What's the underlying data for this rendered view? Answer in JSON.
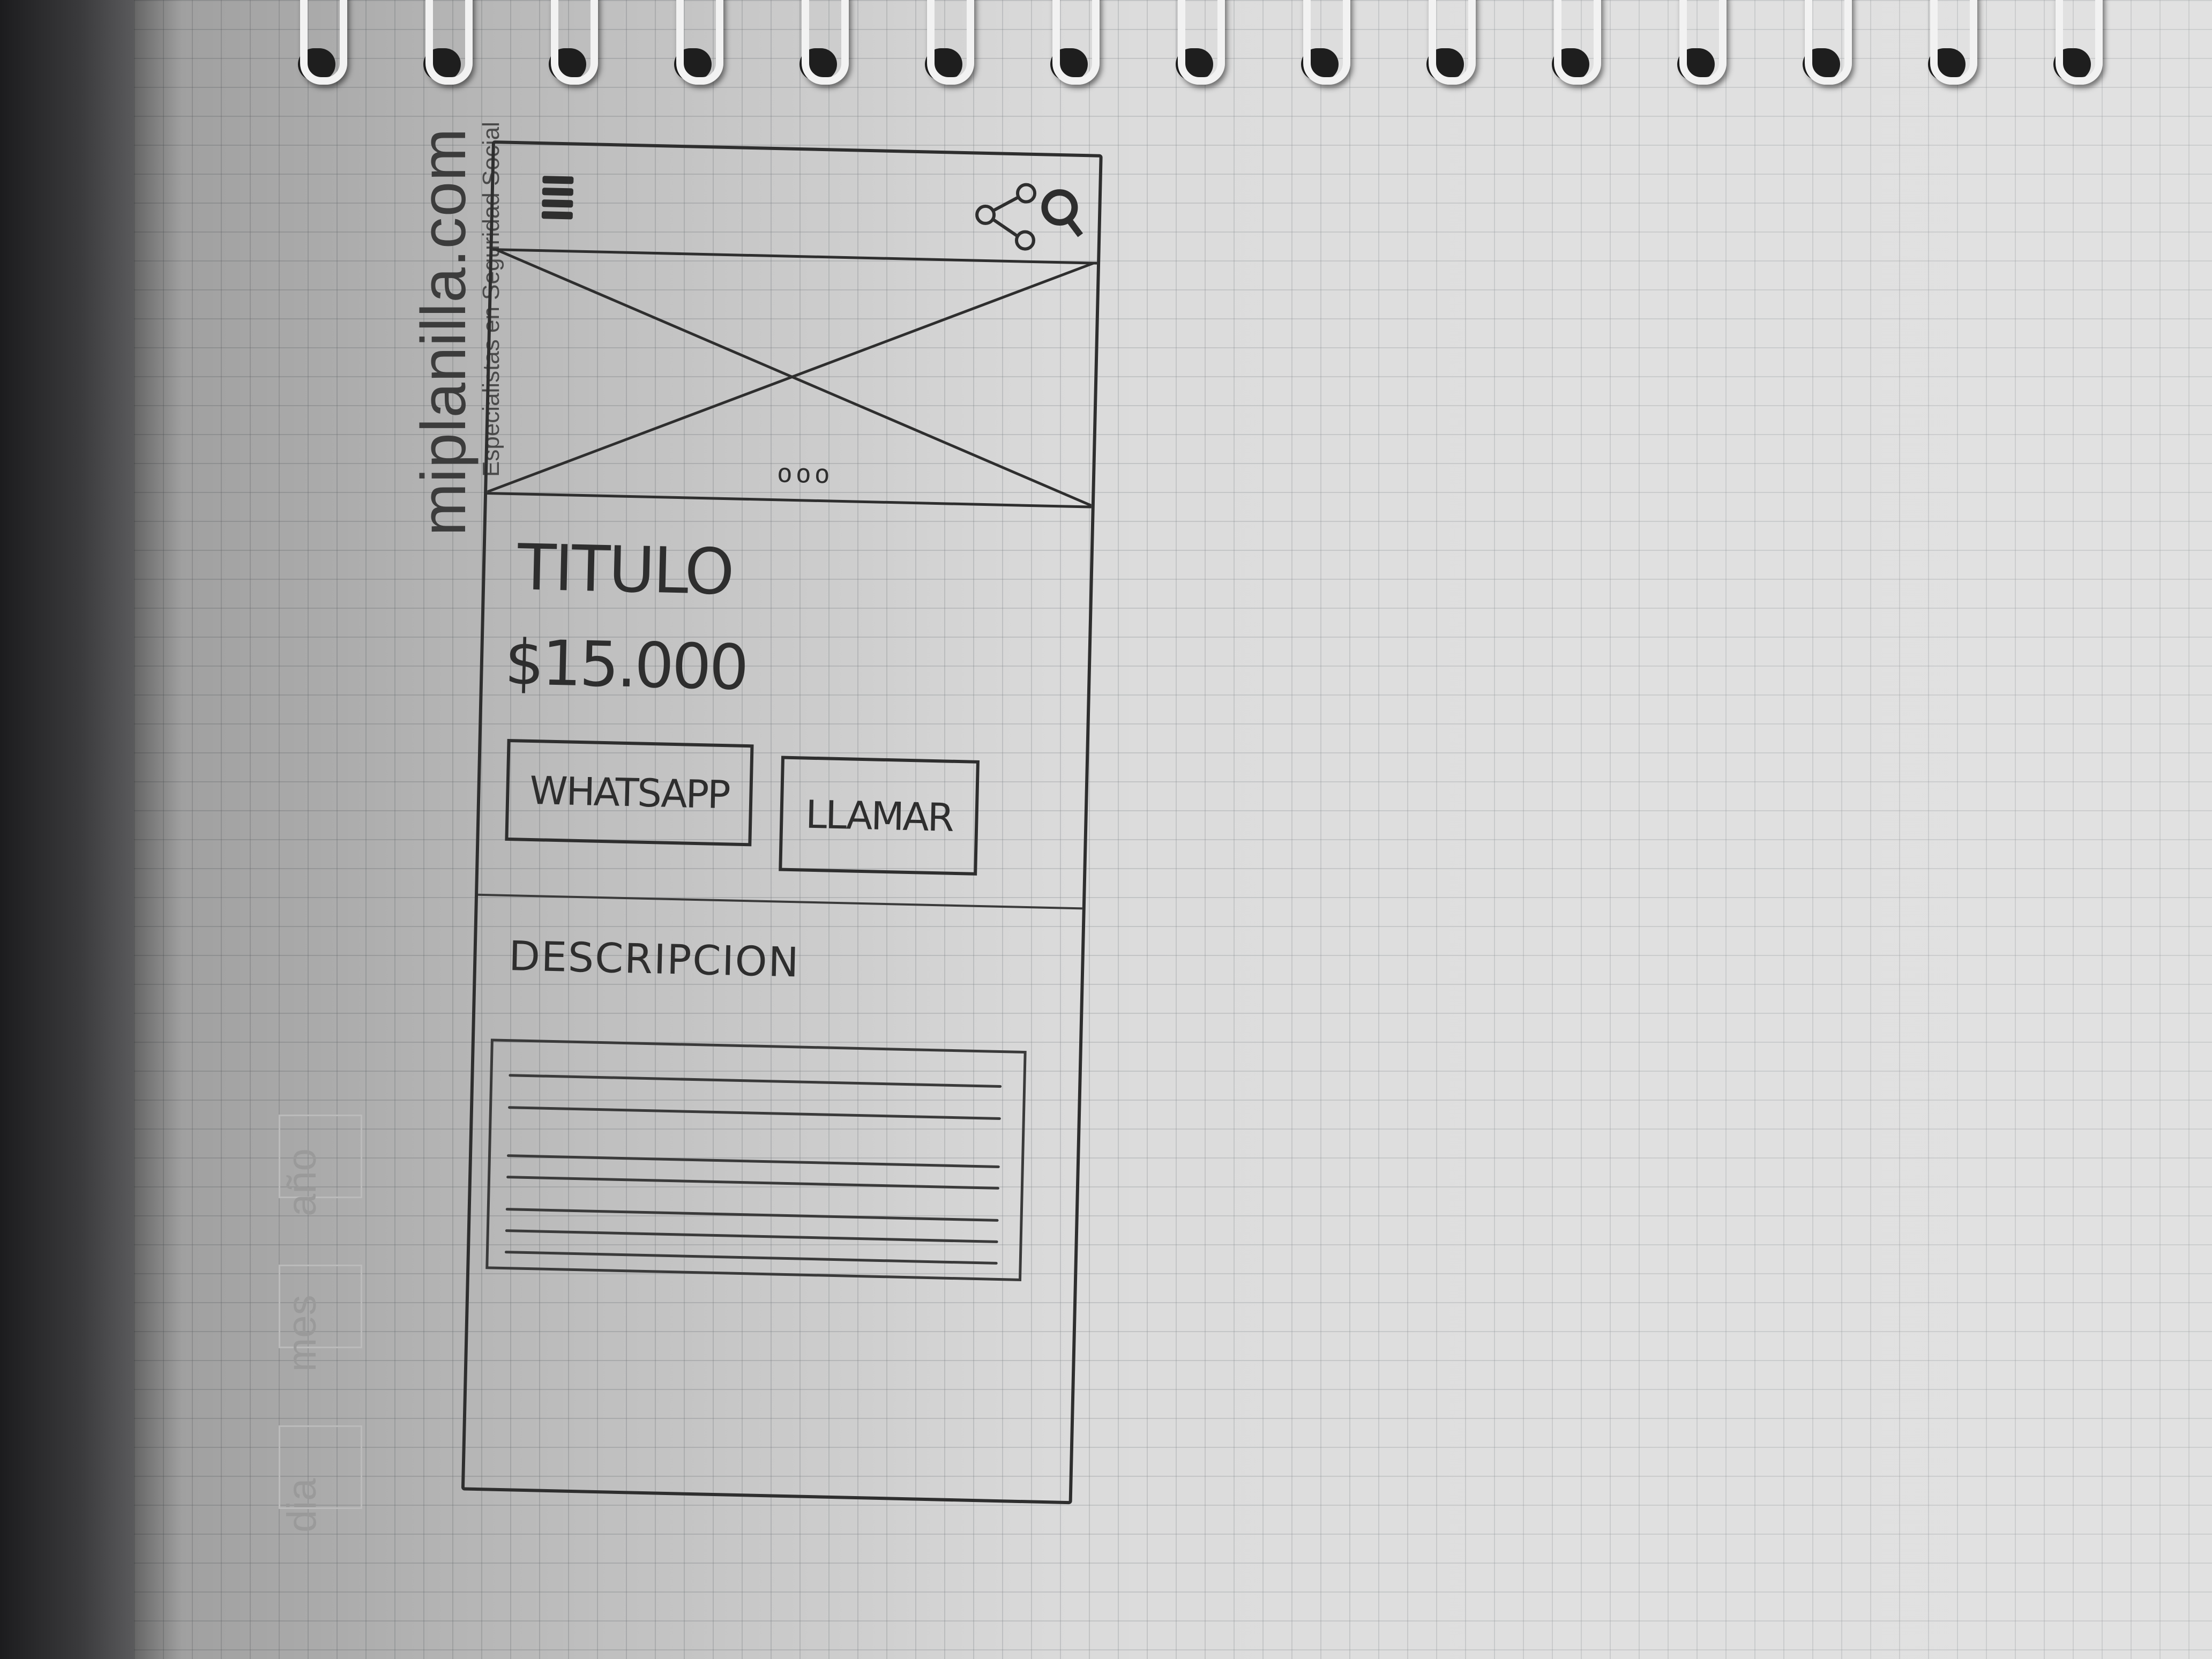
{
  "brand": {
    "name": "miplanilla.com",
    "tagline": "Especialistas en Seguridad Social"
  },
  "date_fields": {
    "day": "dia",
    "month": "mes",
    "year": "año"
  },
  "wireframe": {
    "header": {
      "menu_icon": "hamburger-icon",
      "share_icon": "share-icon",
      "search_icon": "search-icon"
    },
    "carousel": {
      "placeholder": "image-placeholder",
      "dots": "ooo"
    },
    "title": "TITULO",
    "price": "$15.000",
    "buttons": {
      "whatsapp": "WHATSAPP",
      "call": "LLAMAR"
    },
    "description_label": "DESCRIPCION"
  },
  "colors": {
    "paper": "#d9d9d9",
    "pencil": "#2e2e2e"
  }
}
